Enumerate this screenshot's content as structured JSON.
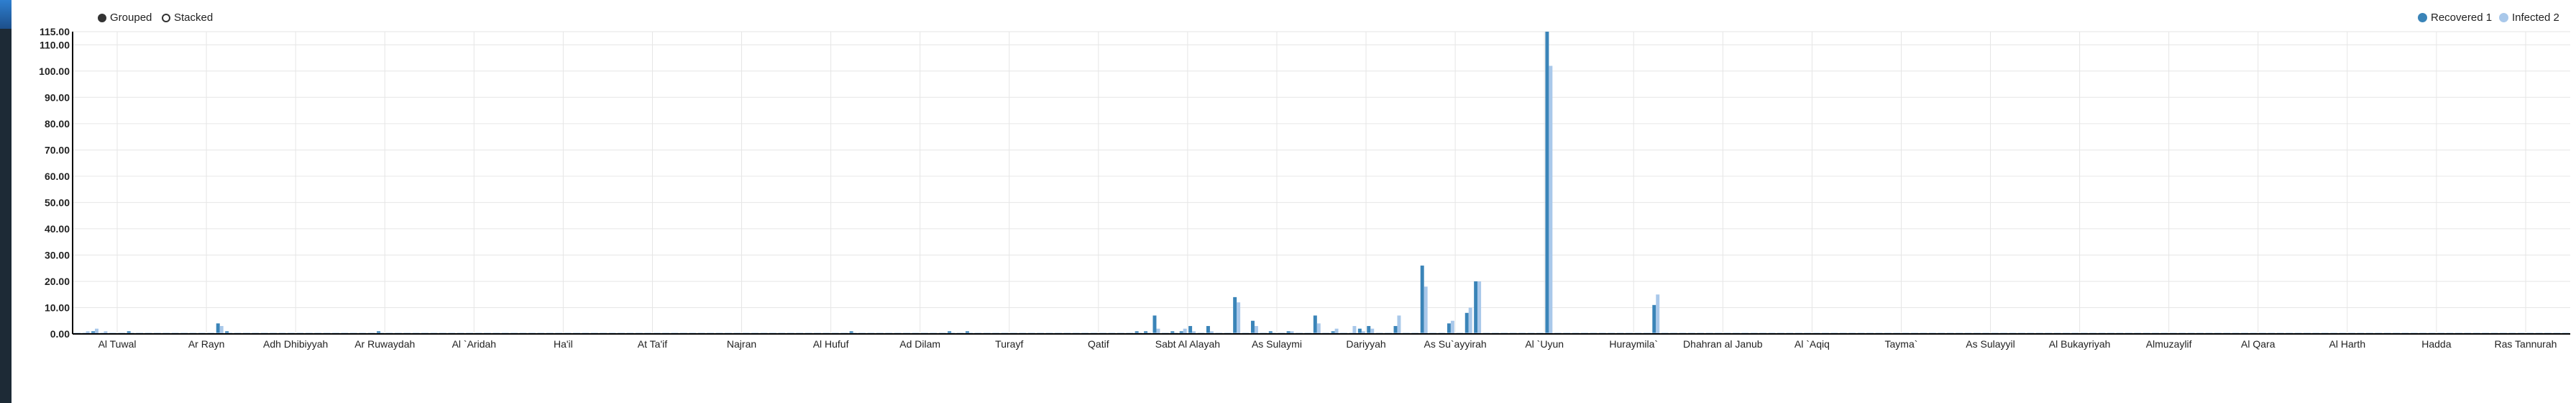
{
  "controls": {
    "grouped_label": "Grouped",
    "stacked_label": "Stacked",
    "selected": "Grouped"
  },
  "colors": {
    "series1": "#3a84b8",
    "series2": "#a9c8ea",
    "grid": "#e6e6e6",
    "axis": "#000000",
    "sidebar": "#1d2a36"
  },
  "chart_data": {
    "type": "bar",
    "title": "",
    "xlabel": "",
    "ylabel": "",
    "ylim": [
      0,
      115
    ],
    "yticks": [
      0,
      10,
      20,
      30,
      40,
      50,
      60,
      70,
      80,
      90,
      100,
      110,
      115
    ],
    "ytick_labels": [
      "0.00",
      "10.00",
      "20.00",
      "30.00",
      "40.00",
      "50.00",
      "60.00",
      "70.00",
      "80.00",
      "90.00",
      "100.00",
      "110.00",
      "115.00"
    ],
    "grid": true,
    "legend_position": "top-right",
    "categories_shown": [
      "Al Tuwal",
      "Ar Rayn",
      "Adh Dhibiyyah",
      "Ar Ruwaydah",
      "Al `Aridah",
      "Ha'il",
      "At Ta'if",
      "Najran",
      "Al Hufuf",
      "Ad Dilam",
      "Turayf",
      "Qatif",
      "Sabt Al Alayah",
      "As Sulaymi",
      "Dariyyah",
      "As Su`ayyirah",
      "Al `Uyun",
      "Huraymila`",
      "Dhahran al Janub",
      "Al `Aqiq",
      "Tayma`",
      "As Sulayyil",
      "Al Bukayriyah",
      "Almuzaylif",
      "Al Qara",
      "Al Harth",
      "Hadda",
      "Ras Tannurah"
    ],
    "n_bars": 280,
    "series": [
      {
        "name": "Recovered 1",
        "values": [
          0,
          0,
          1,
          0,
          0,
          0,
          1,
          0,
          0,
          0,
          0,
          0,
          0,
          0,
          0,
          0,
          4,
          1,
          0,
          0,
          0,
          0,
          0,
          0,
          0,
          0,
          0,
          0,
          0,
          0,
          0,
          0,
          0,
          0,
          1,
          0,
          0,
          0,
          0,
          0,
          0,
          0,
          0,
          0,
          0,
          0,
          0,
          0,
          0,
          0,
          0,
          0,
          0,
          0,
          0,
          0,
          0,
          0,
          0,
          0,
          0,
          0,
          0,
          0,
          0,
          0,
          0,
          0,
          0,
          0,
          0,
          0,
          0,
          0,
          0,
          0,
          0,
          0,
          0,
          0,
          0,
          0,
          0,
          0,
          0,
          0,
          0,
          1,
          0,
          0,
          0,
          0,
          0,
          0,
          0,
          0,
          0,
          0,
          1,
          0,
          1,
          0,
          0,
          0,
          0,
          0,
          0,
          0,
          0,
          0,
          0,
          0,
          0,
          0,
          0,
          0,
          0,
          0,
          0,
          1,
          1,
          7,
          0,
          1,
          1,
          3,
          0,
          3,
          0,
          0,
          14,
          0,
          5,
          0,
          1,
          0,
          1,
          0,
          0,
          7,
          0,
          1,
          0,
          0,
          2,
          3,
          0,
          0,
          3,
          0,
          0,
          26,
          0,
          0,
          4,
          0,
          8,
          20,
          0,
          0,
          0,
          0,
          0,
          0,
          0,
          118,
          0,
          0,
          0,
          0,
          0,
          0,
          0,
          0,
          0,
          0,
          0,
          11,
          0,
          0,
          0,
          0,
          0,
          0,
          0,
          0,
          0,
          0,
          0,
          0,
          0,
          0,
          0,
          0,
          0,
          0,
          0,
          0,
          0,
          0,
          0,
          0,
          0,
          0,
          0,
          0,
          0,
          0,
          0,
          0,
          0,
          0,
          0,
          0,
          0,
          0,
          0,
          0,
          0,
          0,
          0,
          0,
          0,
          0,
          0,
          0,
          0,
          0,
          0,
          0,
          0,
          0,
          0,
          0,
          0,
          0,
          0,
          0,
          0,
          0,
          0,
          0,
          0,
          0,
          0,
          0,
          0,
          0,
          0,
          0,
          0,
          0,
          0,
          0,
          0,
          0,
          0,
          0,
          0,
          0,
          0,
          0,
          0,
          0,
          0,
          0,
          0,
          0,
          0,
          0,
          0,
          0,
          0,
          0,
          0,
          0,
          0,
          0,
          0,
          0,
          0,
          0,
          0,
          0,
          0,
          0
        ]
      },
      {
        "name": "Infected 2",
        "values": [
          0,
          1,
          2,
          1,
          0,
          0,
          0,
          0,
          0,
          0,
          0,
          0,
          0,
          0,
          0,
          0,
          3,
          0,
          0,
          0,
          0,
          0,
          0,
          0,
          0,
          0,
          0,
          0,
          0,
          0,
          0,
          0,
          0,
          0,
          0,
          0,
          0,
          0,
          0,
          0,
          0,
          0,
          0,
          0,
          0,
          0,
          0,
          0,
          0,
          0,
          0,
          0,
          0,
          0,
          0,
          0,
          0,
          0,
          0,
          0,
          0,
          0,
          0,
          0,
          0,
          0,
          0,
          0,
          0,
          0,
          0,
          0,
          0,
          0,
          0,
          0,
          0,
          0,
          0,
          0,
          0,
          0,
          0,
          0,
          0,
          0,
          0,
          0,
          0,
          0,
          0,
          0,
          0,
          0,
          0,
          0,
          0,
          0,
          0,
          0,
          0,
          0,
          0,
          0,
          0,
          0,
          0,
          0,
          0,
          0,
          0,
          0,
          0,
          0,
          0,
          0,
          0,
          0,
          0,
          0,
          0,
          2,
          0,
          0,
          2,
          1,
          0,
          1,
          0,
          0,
          12,
          0,
          3,
          0,
          0,
          0,
          1,
          0,
          0,
          4,
          0,
          2,
          0,
          3,
          1,
          2,
          0,
          0,
          7,
          0,
          0,
          18,
          0,
          0,
          5,
          0,
          10,
          20,
          0,
          0,
          0,
          0,
          0,
          0,
          0,
          102,
          0,
          0,
          0,
          0,
          0,
          0,
          0,
          0,
          0,
          0,
          0,
          15,
          0,
          0,
          0,
          0,
          0,
          0,
          0,
          0,
          0,
          0,
          0,
          0,
          0,
          0,
          0,
          0,
          0,
          0,
          0,
          0,
          0,
          0,
          0,
          0,
          0,
          0,
          0,
          0,
          0,
          0,
          0,
          0,
          0,
          0,
          0,
          0,
          0,
          0,
          0,
          0,
          0,
          0,
          0,
          0,
          0,
          0,
          0,
          0,
          0,
          0,
          0,
          0,
          0,
          0,
          0,
          0,
          0,
          0,
          0,
          0,
          0,
          0,
          0,
          0,
          0,
          0,
          0,
          0,
          0,
          0,
          0,
          0,
          0,
          0,
          0,
          0,
          0,
          0,
          0,
          0,
          0,
          0,
          0,
          0,
          0,
          0,
          0,
          0,
          0,
          0,
          0,
          0,
          0,
          0,
          0,
          0,
          0,
          0,
          0,
          0,
          0,
          0,
          0,
          0,
          0,
          0,
          0,
          0
        ]
      }
    ]
  }
}
